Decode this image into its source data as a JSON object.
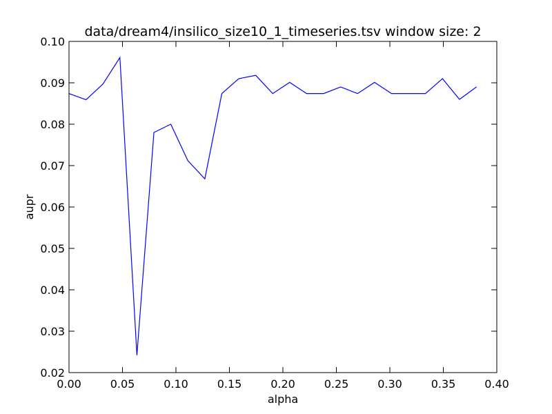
{
  "chart_data": {
    "type": "line",
    "title": "data/dream4/insilico_size10_1_timeseries.tsv window size: 2",
    "xlabel": "alpha",
    "ylabel": "aupr",
    "xlim": [
      0.0,
      0.4
    ],
    "ylim": [
      0.02,
      0.1
    ],
    "xticks": [
      "0.00",
      "0.05",
      "0.10",
      "0.15",
      "0.20",
      "0.25",
      "0.30",
      "0.35",
      "0.40"
    ],
    "yticks": [
      "0.02",
      "0.03",
      "0.04",
      "0.05",
      "0.06",
      "0.07",
      "0.08",
      "0.09",
      "0.10"
    ],
    "grid": false,
    "line_color": "#0000ff",
    "series": [
      {
        "x": [
          0.0,
          0.0159,
          0.0317,
          0.0476,
          0.0635,
          0.0794,
          0.0952,
          0.1111,
          0.127,
          0.1429,
          0.1587,
          0.1746,
          0.1905,
          0.2063,
          0.2222,
          0.2381,
          0.254,
          0.2698,
          0.2857,
          0.3016,
          0.3175,
          0.3333,
          0.3492,
          0.3651,
          0.381
        ],
        "y": [
          0.0874,
          0.0859,
          0.0897,
          0.0961,
          0.0242,
          0.078,
          0.08,
          0.0712,
          0.0668,
          0.0874,
          0.091,
          0.0918,
          0.0874,
          0.0901,
          0.0874,
          0.0874,
          0.089,
          0.0874,
          0.0901,
          0.0874,
          0.0874,
          0.0874,
          0.091,
          0.086,
          0.089
        ]
      }
    ]
  }
}
